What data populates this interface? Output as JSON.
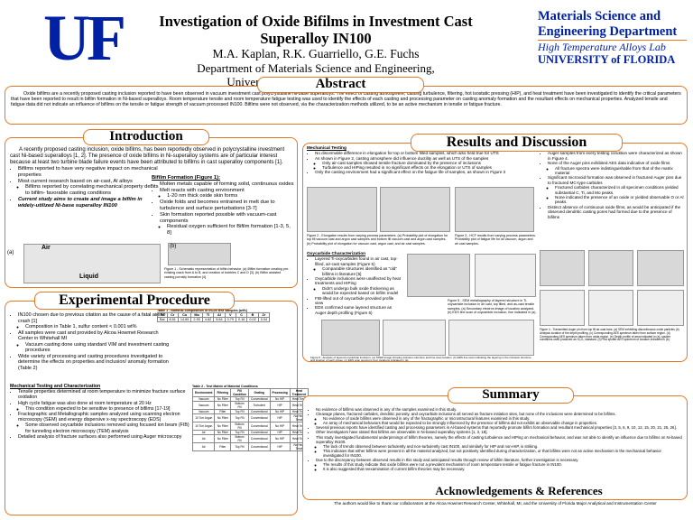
{
  "header": {
    "logo": "UF",
    "title": "Investigation of Oxide Bifilms in Investment Cast Superalloy IN100",
    "authors": "M.A. Kaplan, R.K. Guarriello, G.E. Fuchs",
    "department": "Department of Materials Science and Engineering,",
    "university": "University of Florida, Gainesville, FL",
    "lab_logo": [
      "Materials Science and",
      "Engineering Department",
      "High Temperature Alloys Lab",
      "UNIVERSITY of FLORIDA"
    ]
  },
  "abstract": {
    "heading": "Abstract",
    "text": "Oxide bifilms are a recently proposed casting inclusion reported to have been observed in vacuum investment cast polycrystalline Ni-base superalloys. The effect of casting atmosphere, casting turbulence, filtering, hot isostatic pressing (HIP), and heat treatment have been investigated to identify the critical parameters that have been reported to result in bifilm formation in Ni-based superalloys. Room temperature tensile and room temperature fatigue testing was used to identify the effects of each casting and processing parameter on casting anomaly formation and the resultant effects on mechanical properties. Analyzed tensile and fatigue data did not indicate an influence of bifilms on the tensile or fatigue strength of vacuum processed IN100. Bifilms were not observed, via the characterization methods utilized, to be an active mechanism in tensile or fatigue fracture."
  },
  "introduction": {
    "heading": "Introduction",
    "paragraph": "A recently proposed casting inclusion, oxide bifilms, has been reportedly observed in polycrystalline investment cast Ni-based superalloys [1, 2]. The presence of oxide bifilms in Ni-superalloy systems are of particular interest because at least two turbine blade failure events have been attributed to bifilms in cast superalloy components [1].",
    "bullets": [
      "Bifilms reported to have very negative impact on mechanical properties",
      {
        "text": "Most current research based on air-cast, Al alloys",
        "sub": [
          "Bifilms reported by correlating mechanical property debits to bifilm- favorable casting conditions"
        ]
      }
    ],
    "aim": "Current study aims to create and image a bifilm in widely-utilized Ni-base superalloy IN100",
    "formation_heading": "Bifilm Formation (Figure 1):",
    "formation_bullets": [
      "Molten metals capable of forming solid, continuous oxides",
      {
        "text": "Melt reacts with casting environment",
        "sub": [
          "1-20 nm thick oxide skin forms"
        ]
      },
      "Oxide folds and becomes entrained in melt due to turbulence and surface perturbations [3-7]",
      {
        "text": "Skin formation reported possible with vacuum-cast components",
        "sub": [
          "Residual oxygen sufficient for Bifilm formation [1-3, 5, 8]"
        ]
      }
    ],
    "figure_labels": [
      "Air",
      "Liquid",
      "(a)",
      "(b)"
    ],
    "figure_caption": "Figure 1 - Schematic representation of bifilm behavior. (a) Bifilm formation creating pre-existing crack from A to B, and creation of bubbles C and D [3]. (b) Bifilm assisted casting porosity formation [4]."
  },
  "experimental": {
    "heading": "Experimental Procedure",
    "bullets": [
      {
        "text": "IN100 chosen due to previous citation as the cause of a fatal airline crash [1]",
        "sub": [
          "Composition in Table 1, sulfur content < 0.001 wt%"
        ]
      },
      {
        "text": "All samples were cast and provided by Alcoa Howmet Research Center in Whitehall MI",
        "sub": [
          "Vacuum casting done using standard VIM and investment casting procedures"
        ]
      },
      "Wide variety of processing and casting procedures investigated to determine the effects on properties and inclusion/ anomaly formation (Table 2)"
    ],
    "table1": {
      "caption": "Table 1 - Nominal composition of IN100 test samples (wt%)",
      "header": [
        "Ni",
        "Cr",
        "Co",
        "Mo",
        "Ti",
        "Al",
        "V",
        "C",
        "B",
        "Zr"
      ],
      "rows": [
        [
          "Bal",
          "8.51",
          "14.65",
          "2.93",
          "4.62",
          "5.64",
          "0.79",
          "0.16",
          "0.02",
          "0.04"
        ]
      ]
    },
    "mech_heading": "Mechanical Testing and Characterization",
    "mech_bullets": [
      {
        "text": "Tensile properties determined at room temperature to minimize fracture surface oxidation",
        "sub": []
      },
      {
        "text": "High cycle fatigue was also done at room temperature at 20 Hz",
        "sub": [
          "This condition expected to be sensitive to presence of bifilms [17-19]"
        ]
      },
      {
        "text": "Fractographic and Metallographic samples analyzed using scanning electron microscopy (SEM) and energy dispersive x-ray spectroscopy (EDS)",
        "sub": [
          "Some observed oxycarbide inclusions removed using focused ion beam (FIB) for tunneling electron microscopy (TEM) analysis"
        ]
      },
      "Detailed analysis of fracture surfaces also performed using Auger microscopy"
    ],
    "table2": {
      "caption": "Table 2 - Test Matrix of Material Conditions",
      "header": [
        "Environment",
        "Filtering",
        "Fill Condition",
        "Grating",
        "Processing",
        "Heat Treatment"
      ],
      "rows": [
        [
          "Vacuum",
          "No Filter",
          "Top Fill",
          "Conventional",
          "No HIP",
          "Heat Treat"
        ],
        [
          "Vacuum",
          "No Filter",
          "Bottom Fill",
          "Turbulent",
          "HIP",
          "Heat Treat"
        ],
        [
          "Vacuum",
          "Filter",
          "Top Fill",
          "Conventional",
          "No HIP",
          "Heat Treat"
        ],
        [
          "10 Torr Argon",
          "No Filter",
          "Top Fill",
          "Conventional",
          "HIP",
          "No Heat Treat"
        ],
        [
          "10 Torr Argon",
          "No Filter",
          "Bottom Fill",
          "Conventional",
          "No HIP",
          "Heat Treat"
        ],
        [
          "Air",
          "No Filter",
          "Top Fill",
          "Conventional",
          "HIP",
          "Heat Treat"
        ],
        [
          "Air",
          "No Filter",
          "Bottom Fill",
          "Conventional",
          "No HIP",
          "Heat Treat"
        ],
        [
          "Air",
          "Filter",
          "Top Fill",
          "Conventional",
          "HIP",
          "No Heat Treat"
        ]
      ]
    }
  },
  "results": {
    "heading": "Results and Discussion",
    "mech_heading": "Mechanical Testing",
    "mech_bullets": [
      "No discernable difference in elongation for top or bottom filled samples, which also held true for UTS",
      {
        "text": "As shown in Figure 2, casting atmosphere did influence ductility as well as UTS of the samples",
        "sub": [
          "Only air-cast samples showed tensile fracture dominated by the presence of inclusions",
          "Turbulence and HIPing resulted in no significant effects on the elongation or UTS of samples"
        ]
      },
      "Only the casting environment had a significant effect on the fatigue life of samples, as shown in Figure 3"
    ],
    "figure2_caption": "Figure 2 - Elongation results from varying process parameters. (a) Probability plot of elongation for top fill vacuum cast and argon cast samples and bottom fill vacuum cast and argon cast samples. (b) Probability plot of elongation for vacuum cast, argon cast, and air cast samples.",
    "figure3_caption": "Figure 3 - HCF results from varying process parameters. Probability plot of fatigue life for all vacuum, argon and air cast samples.",
    "dys_heading": "Oxycarbide Characterization",
    "dys_bullets": [
      {
        "text": "Layered Ti-oxycarbides found in air cast, top-filled, air-cast samples (Figure 5)",
        "sub": [
          "Comparable structures identified as \"old\" bifilms in literature [5]"
        ]
      },
      {
        "text": "Oxycarbide inclusions were unaffected by heat treatments and HIPing",
        "sub": [
          "Didn't undergo bulk oxide thickening as would be expected based on bifilm model"
        ]
      },
      "FIB-lifted out of oxycarbide provided profile view",
      "EDS confirmed same layered structure as Auger depth profiling (Figure 6)"
    ],
    "figure5_caption": "Figure 5 - SEM metallography of layered structure in Ti-oxycarbide inclusion in air cast, top filled, and as-cast tensile samples. (a) Secondary electron image of location analyzed. (b) EDS line scan of oxycarbide inclusion, line indicated in (a).",
    "figure6_caption": "Figure 6 - Analysis of layered oxycarbide inclusion. (a) STEM image showing inclusion structure and line scan location. (b) EDS line scan indicating the layering in the inclusion structure and location of each phase. (c) EDS scan spectrum from locations indicated in (a).",
    "auger_heading": "Auger Analysis",
    "auger_bullets": [
      {
        "text": "Auger samples from every testing condition were characterized as shown in Figure 4.",
        "sub": []
      },
      {
        "text": "None of the Auger pins exhibited AES data indicative of oxide films",
        "sub": [
          "All fracture spectra were indistinguishable from that of the matrix material"
        ]
      },
      {
        "text": "Significant microvoid formation was observed in fractured Auger pins due to fractured MC-type carbides",
        "sub": [
          "Fractured carbides characterized in all specimen conditions yielded substantial C, Ti, and Mo peaks.",
          "None indicated the presence of an oxide or yielded observable O or Al peaks."
        ]
      },
      "Distinct absence of continuous oxide films, as would be anticipated if the observed dendritic casting pores had formed due to the presence of bifilms"
    ],
    "figure4_caption": "Figure 4 - Transmitted Auger pin from top fill air-cast bars. (a) SEM exhibiting discontinuous oxide particles (b) Analysis location of the depth profiling. (c) Corresponding AES spectrum taken from surface region. (d) Corresponding AES spectrum taken from oxide region. (e) Depth profile of area indicated in (a), sputter conditions used produced an Si₂O₅ standard. (f) Post sputter AES spectrum of location indicated in (b)."
  },
  "summary": {
    "heading": "Summary",
    "bullets": [
      {
        "text": "No evidence of bifilms was observed in any of the samples examined in this study.",
        "sub": []
      },
      {
        "text": "Cleavage planes, fractured carbides, dendritic porosity, and oxycarbide inclusions all served as fracture initiation sites, but none of the inclusions were determined to be bifilms.",
        "sub": [
          "No evidence of oxide bifilms were observed in any of the fractographic or microstructural features examined in this study.",
          "An array of mechanical behaviors that would be expected to be strongly influenced by the presence of bifilms did not exhibit an observable change in properties."
        ]
      },
      "Several previous reports have identified casting and processing parameters in Al-based systems that reportedly promote bifilm formation and resultant mechanical properties [3, 5, 6, 9, 10, 12, 15, 20, 21, 25, 26].",
      {
        "text": "Other investigators have stated that bifilms are observable in Ni-based superalloy systems [1, 3, 18].",
        "sub": []
      },
      {
        "text": "This study investigated fundamental underpinnings of bifilm theories, namely the effects of casting turbulence and HIPing on mechanical behavior, and was not able to identify an influence due to bifilms on Ni-based superalloy IN100.",
        "sub": [
          "The lack of trends observed between turbulently and non-turbulently cast IN100, and similarly for HIP and non-HIP, is striking.",
          "This indicates that either bifilms were present in all the material analyzed, but not positively identified during characterization, or that bifilms were not an active mechanism in the mechanical behavior investigated for IN100."
        ]
      },
      {
        "text": "Due to the discrepancy between observed results in this study and anticipated results through review of bifilm literature, further investigation is necessary.",
        "sub": [
          "The results of this study indicate that oxide bifilms were not a prevalent mechanism of room temperature tensile or fatigue fracture in IN100.",
          "It is also suggested that reexamination of current bifilm theories may be necessary."
        ]
      }
    ]
  },
  "acknowledgements": {
    "heading": "Acknowledgements & References",
    "text": "The authors would like to thank our collaborators at the Alcoa Howmet Research Center, Whitehall, MI, and the University of Florida Major Analytical and Instrumentation Center"
  }
}
